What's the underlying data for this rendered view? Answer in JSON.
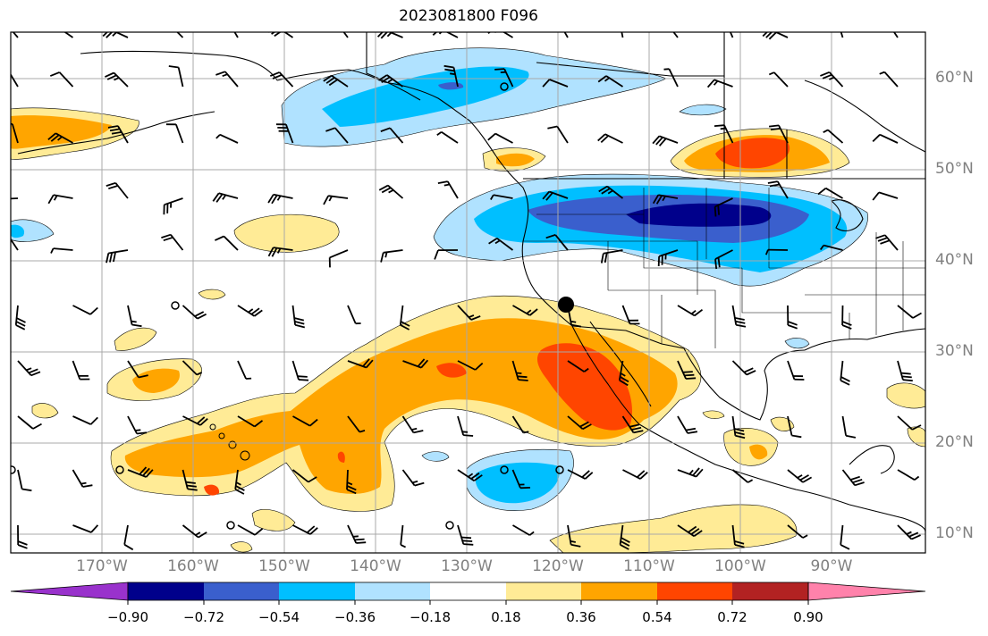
{
  "title": "2023081800 F096",
  "map": {
    "projection": "PlateCarree",
    "lon_range": [
      -180,
      -80
    ],
    "lat_range": [
      7,
      64
    ],
    "field": "filled anomaly contours with wind barbs",
    "marker": {
      "lon": -120,
      "lat": 35,
      "label": ""
    }
  },
  "lat_labels": [
    "60°N",
    "50°N",
    "40°N",
    "30°N",
    "20°N",
    "10°N"
  ],
  "lat_values": [
    60,
    50,
    40,
    30,
    20,
    10
  ],
  "lon_labels": [
    "170°W",
    "160°W",
    "150°W",
    "140°W",
    "130°W",
    "120°W",
    "110°W",
    "100°W",
    "90°W"
  ],
  "lon_values": [
    -170,
    -160,
    -150,
    -140,
    -130,
    -120,
    -110,
    -100,
    -90
  ],
  "colorbar": {
    "tick_labels": [
      "−0.90",
      "−0.72",
      "−0.54",
      "−0.36",
      "−0.18",
      "0.18",
      "0.36",
      "0.54",
      "0.72",
      "0.90"
    ],
    "colors": [
      "#9932cc",
      "#00008b",
      "#3a5fcd",
      "#00bfff",
      "#b0e2ff",
      "#ffffff",
      "#ffeb96",
      "#ffa500",
      "#ff4500",
      "#b22222",
      "#ff82ab"
    ],
    "extend": "both"
  }
}
